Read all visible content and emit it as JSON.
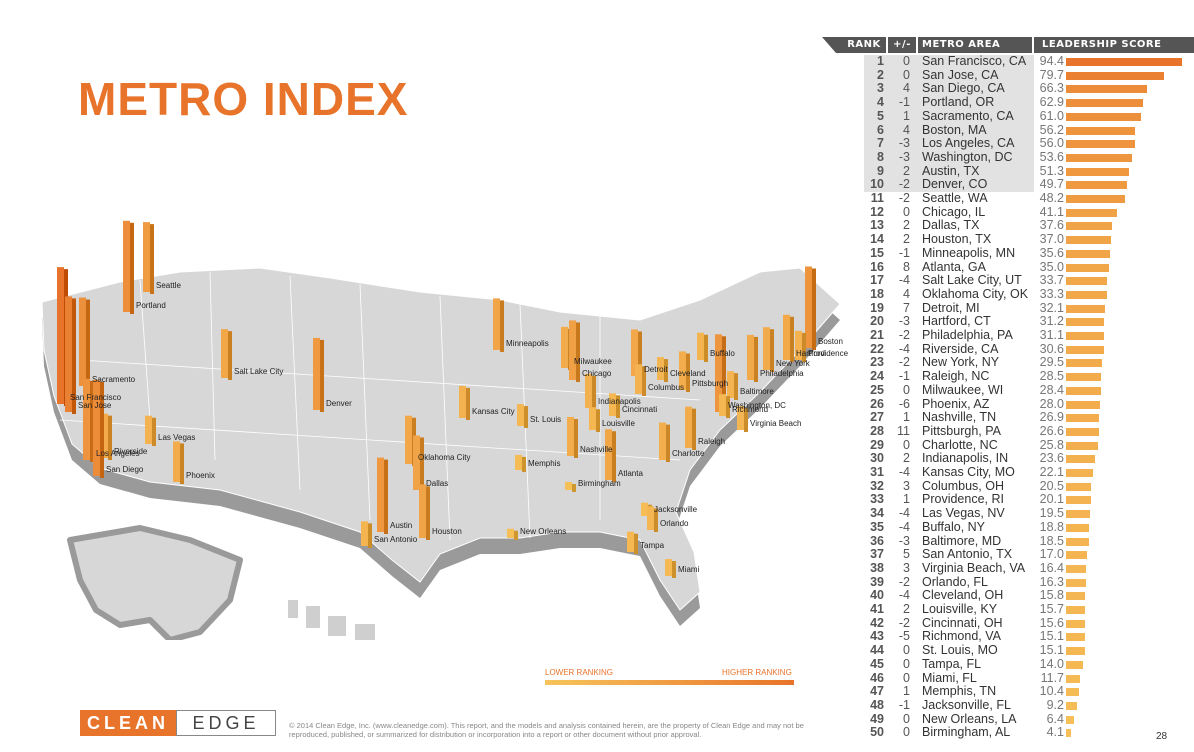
{
  "title": "METRO INDEX",
  "colors": {
    "accent": "#e8732a",
    "low": "#f7c45a",
    "high": "#e8732a"
  },
  "table_headers": {
    "rank": "RANK",
    "change": "+/-",
    "metro": "METRO AREA",
    "score": "LEADERSHIP SCORE"
  },
  "legend": {
    "low": "LOWER RANKING",
    "high": "HIGHER RANKING"
  },
  "logo": {
    "left": "CLEAN",
    "right": "EDGE"
  },
  "copyright": "© 2014 Clean Edge, Inc. (www.cleanedge.com). This report, and the models and analysis contained herein, are the property of Clean Edge and may not be reproduced, published, or summarized for distribution or incorporation into a report or other document without prior approval.",
  "page_number": "28",
  "map_labels": [
    "Seattle",
    "Portland",
    "Sacramento",
    "San Francisco",
    "San Jose",
    "Los Angeles",
    "San Diego",
    "Riverside",
    "Las Vegas",
    "Phoenix",
    "Salt Lake City",
    "Denver",
    "Oklahoma City",
    "Dallas",
    "Austin",
    "San Antonio",
    "Houston",
    "Kansas City",
    "St. Louis",
    "Minneapolis",
    "Milwaukee",
    "Chicago",
    "Memphis",
    "Nashville",
    "Birmingham",
    "New Orleans",
    "Indianapolis",
    "Louisville",
    "Cincinnati",
    "Columbus",
    "Detroit",
    "Cleveland",
    "Pittsburgh",
    "Buffalo",
    "Atlanta",
    "Charlotte",
    "Raleigh",
    "Jacksonville",
    "Orlando",
    "Tampa",
    "Miami",
    "Virginia Beach",
    "Richmond",
    "Washington, DC",
    "Baltimore",
    "Philadelphia",
    "New York",
    "Hartford",
    "Boston",
    "Providence"
  ],
  "chart_data": {
    "type": "bar",
    "title": "METRO INDEX",
    "columns": [
      "RANK",
      "+/-",
      "METRO AREA",
      "LEADERSHIP SCORE"
    ],
    "rows": [
      {
        "rank": "1",
        "change": "0",
        "metro": "San Francisco, CA",
        "score": 94.4
      },
      {
        "rank": "2",
        "change": "0",
        "metro": "San Jose, CA",
        "score": 79.7
      },
      {
        "rank": "3",
        "change": "4",
        "metro": "San Diego, CA",
        "score": 66.3
      },
      {
        "rank": "4",
        "change": "-1",
        "metro": "Portland, OR",
        "score": 62.9
      },
      {
        "rank": "5",
        "change": "1",
        "metro": "Sacramento, CA",
        "score": 61.0
      },
      {
        "rank": "6",
        "change": "4",
        "metro": "Boston, MA",
        "score": 56.2
      },
      {
        "rank": "7",
        "change": "-3",
        "metro": "Los Angeles, CA",
        "score": 56.0
      },
      {
        "rank": "8",
        "change": "-3",
        "metro": "Washington, DC",
        "score": 53.6
      },
      {
        "rank": "9",
        "change": "2",
        "metro": "Austin, TX",
        "score": 51.3
      },
      {
        "rank": "10",
        "change": "-2",
        "metro": "Denver, CO",
        "score": 49.7
      },
      {
        "rank": "11",
        "change": "-2",
        "metro": "Seattle, WA",
        "score": 48.2
      },
      {
        "rank": "12",
        "change": "0",
        "metro": "Chicago, IL",
        "score": 41.1
      },
      {
        "rank": "13",
        "change": "2",
        "metro": "Dallas, TX",
        "score": 37.6
      },
      {
        "rank": "14",
        "change": "2",
        "metro": "Houston, TX",
        "score": 37.0
      },
      {
        "rank": "15",
        "change": "-1",
        "metro": "Minneapolis, MN",
        "score": 35.6
      },
      {
        "rank": "16",
        "change": "8",
        "metro": "Atlanta, GA",
        "score": 35.0
      },
      {
        "rank": "17",
        "change": "-4",
        "metro": "Salt Lake City, UT",
        "score": 33.7
      },
      {
        "rank": "18",
        "change": "4",
        "metro": "Oklahoma City, OK",
        "score": 33.3
      },
      {
        "rank": "19",
        "change": "7",
        "metro": "Detroit, MI",
        "score": 32.1
      },
      {
        "rank": "20",
        "change": "-3",
        "metro": "Hartford, CT",
        "score": 31.2
      },
      {
        "rank": "21",
        "change": "-2",
        "metro": "Philadelphia, PA",
        "score": 31.1
      },
      {
        "rank": "22",
        "change": "-4",
        "metro": "Riverside, CA",
        "score": 30.6
      },
      {
        "rank": "23",
        "change": "-2",
        "metro": "New York, NY",
        "score": 29.5
      },
      {
        "rank": "24",
        "change": "-1",
        "metro": "Raleigh, NC",
        "score": 28.5
      },
      {
        "rank": "25",
        "change": "0",
        "metro": "Milwaukee, WI",
        "score": 28.4
      },
      {
        "rank": "26",
        "change": "-6",
        "metro": "Phoenix, AZ",
        "score": 28.0
      },
      {
        "rank": "27",
        "change": "1",
        "metro": "Nashville, TN",
        "score": 26.9
      },
      {
        "rank": "28",
        "change": "11",
        "metro": "Pittsburgh, PA",
        "score": 26.6
      },
      {
        "rank": "29",
        "change": "0",
        "metro": "Charlotte, NC",
        "score": 25.8
      },
      {
        "rank": "30",
        "change": "2",
        "metro": "Indianapolis, IN",
        "score": 23.6
      },
      {
        "rank": "31",
        "change": "-4",
        "metro": "Kansas City, MO",
        "score": 22.1
      },
      {
        "rank": "32",
        "change": "3",
        "metro": "Columbus, OH",
        "score": 20.5
      },
      {
        "rank": "33",
        "change": "1",
        "metro": "Providence, RI",
        "score": 20.1
      },
      {
        "rank": "34",
        "change": "-4",
        "metro": "Las Vegas, NV",
        "score": 19.5
      },
      {
        "rank": "35",
        "change": "-4",
        "metro": "Buffalo, NY",
        "score": 18.8
      },
      {
        "rank": "36",
        "change": "-3",
        "metro": "Baltimore, MD",
        "score": 18.5
      },
      {
        "rank": "37",
        "change": "5",
        "metro": "San Antonio, TX",
        "score": 17.0
      },
      {
        "rank": "38",
        "change": "3",
        "metro": "Virginia Beach, VA",
        "score": 16.4
      },
      {
        "rank": "39",
        "change": "-2",
        "metro": "Orlando, FL",
        "score": 16.3
      },
      {
        "rank": "40",
        "change": "-4",
        "metro": "Cleveland, OH",
        "score": 15.8
      },
      {
        "rank": "41",
        "change": "2",
        "metro": "Louisville, KY",
        "score": 15.7
      },
      {
        "rank": "42",
        "change": "-2",
        "metro": "Cincinnati, OH",
        "score": 15.6
      },
      {
        "rank": "43",
        "change": "-5",
        "metro": "Richmond, VA",
        "score": 15.1
      },
      {
        "rank": "44",
        "change": "0",
        "metro": "St. Louis, MO",
        "score": 15.1
      },
      {
        "rank": "45",
        "change": "0",
        "metro": "Tampa, FL",
        "score": 14.0
      },
      {
        "rank": "46",
        "change": "0",
        "metro": "Miami, FL",
        "score": 11.7
      },
      {
        "rank": "47",
        "change": "1",
        "metro": "Memphis, TN",
        "score": 10.4
      },
      {
        "rank": "48",
        "change": "-1",
        "metro": "Jacksonville, FL",
        "score": 9.2
      },
      {
        "rank": "49",
        "change": "0",
        "metro": "New Orleans, LA",
        "score": 6.4
      },
      {
        "rank": "50",
        "change": "0",
        "metro": "Birmingham, AL",
        "score": 4.1
      }
    ]
  }
}
